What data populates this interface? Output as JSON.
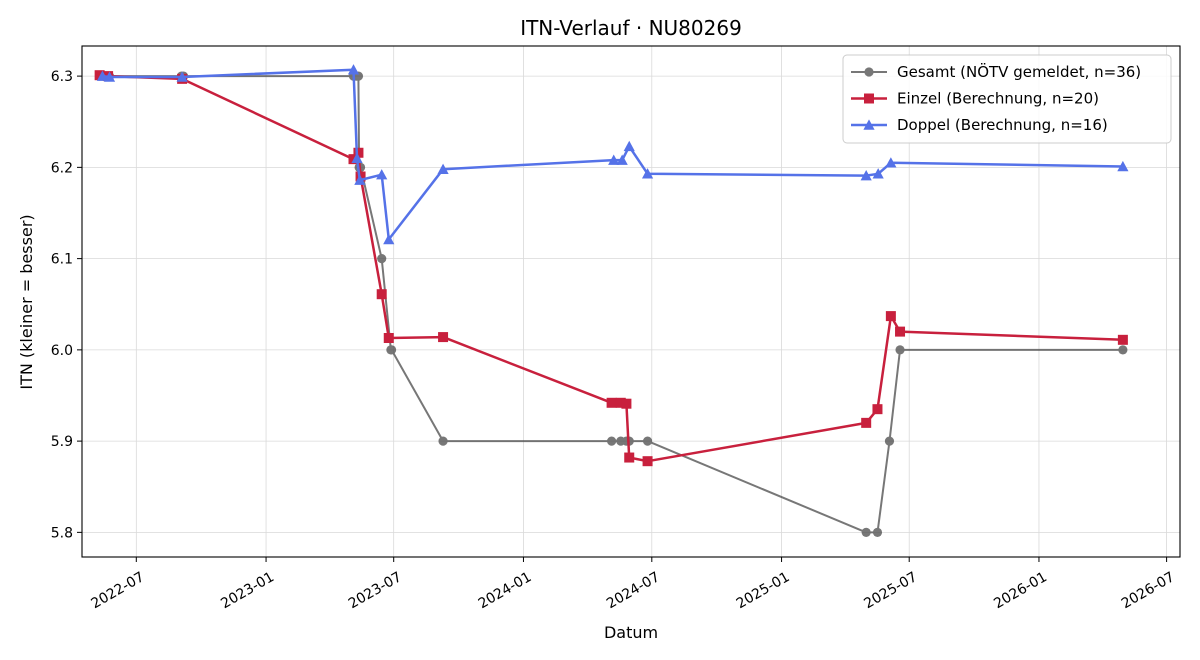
{
  "chart_data": {
    "type": "line",
    "title": "ITN-Verlauf · NU80269",
    "xlabel": "Datum",
    "ylabel": "ITN  (kleiner = besser)",
    "x_axis_type": "date",
    "xlim": [
      "2022-04-15",
      "2026-07-20"
    ],
    "ylim": [
      5.773,
      6.333
    ],
    "x_ticks": [
      "2022-07-01",
      "2023-01-01",
      "2023-07-01",
      "2024-01-01",
      "2024-07-01",
      "2025-01-01",
      "2025-07-01",
      "2026-01-01",
      "2026-07-01"
    ],
    "x_tick_labels": [
      "2022-07",
      "2023-01",
      "2023-07",
      "2024-01",
      "2024-07",
      "2025-01",
      "2025-07",
      "2026-01",
      "2026-07"
    ],
    "y_ticks": [
      5.8,
      5.9,
      6.0,
      6.1,
      6.2,
      6.3
    ],
    "y_tick_labels": [
      "5.8",
      "5.9",
      "6.0",
      "6.1",
      "6.2",
      "6.3"
    ],
    "grid": true,
    "legend_position": "top-right",
    "series": [
      {
        "name": "Gesamt (NÖTV gemeldet, n=36)",
        "color": "#444444",
        "marker": "circle",
        "points": [
          [
            "2022-05-10",
            6.3
          ],
          [
            "2022-05-14",
            6.3
          ],
          [
            "2022-05-18",
            6.3
          ],
          [
            "2022-05-24",
            6.3
          ],
          [
            "2022-09-03",
            6.3
          ],
          [
            "2022-09-06",
            6.3
          ],
          [
            "2023-05-05",
            6.3
          ],
          [
            "2023-05-09",
            6.3
          ],
          [
            "2023-05-12",
            6.3
          ],
          [
            "2023-05-13",
            6.2
          ],
          [
            "2023-05-15",
            6.2
          ],
          [
            "2023-06-14",
            6.1
          ],
          [
            "2023-06-27",
            6.0
          ],
          [
            "2023-06-28",
            6.0
          ],
          [
            "2023-09-09",
            5.9
          ],
          [
            "2024-05-05",
            5.9
          ],
          [
            "2024-05-18",
            5.9
          ],
          [
            "2024-05-26",
            5.9
          ],
          [
            "2024-05-30",
            5.9
          ],
          [
            "2024-06-25",
            5.9
          ],
          [
            "2025-05-01",
            5.8
          ],
          [
            "2025-05-17",
            5.8
          ],
          [
            "2025-06-03",
            5.9
          ],
          [
            "2025-06-18",
            6.0
          ],
          [
            "2026-04-30",
            6.0
          ]
        ]
      },
      {
        "name": "Einzel (Berechnung, n=20)",
        "color": "#c8203d",
        "marker": "square",
        "points": [
          [
            "2022-05-10",
            6.301
          ],
          [
            "2022-05-22",
            6.3
          ],
          [
            "2022-09-04",
            6.297
          ],
          [
            "2023-05-05",
            6.209
          ],
          [
            "2023-05-12",
            6.216
          ],
          [
            "2023-05-15",
            6.19
          ],
          [
            "2023-06-14",
            6.061
          ],
          [
            "2023-06-24",
            6.013
          ],
          [
            "2023-09-09",
            6.014
          ],
          [
            "2024-05-05",
            5.942
          ],
          [
            "2024-05-18",
            5.942
          ],
          [
            "2024-05-26",
            5.941
          ],
          [
            "2024-05-30",
            5.882
          ],
          [
            "2024-06-25",
            5.878
          ],
          [
            "2025-05-01",
            5.92
          ],
          [
            "2025-05-17",
            5.935
          ],
          [
            "2025-06-05",
            6.037
          ],
          [
            "2025-06-18",
            6.02
          ],
          [
            "2026-04-30",
            6.011
          ]
        ]
      },
      {
        "name": "Doppel (Berechnung, n=16)",
        "color": "#5572e8",
        "marker": "triangle",
        "points": [
          [
            "2022-05-14",
            6.3
          ],
          [
            "2022-05-24",
            6.299
          ],
          [
            "2022-09-04",
            6.299
          ],
          [
            "2023-05-05",
            6.307
          ],
          [
            "2023-05-10",
            6.21
          ],
          [
            "2023-05-14",
            6.186
          ],
          [
            "2023-06-14",
            6.192
          ],
          [
            "2023-06-24",
            6.121
          ],
          [
            "2023-09-09",
            6.198
          ],
          [
            "2024-05-08",
            6.208
          ],
          [
            "2024-05-20",
            6.208
          ],
          [
            "2024-05-30",
            6.223
          ],
          [
            "2024-06-25",
            6.193
          ],
          [
            "2025-05-01",
            6.191
          ],
          [
            "2025-05-18",
            6.193
          ],
          [
            "2025-06-05",
            6.205
          ],
          [
            "2026-04-30",
            6.201
          ]
        ]
      }
    ]
  }
}
